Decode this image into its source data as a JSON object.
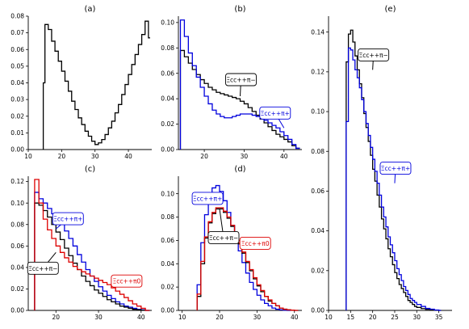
{
  "chart_data": [
    {
      "panel": "(a)",
      "type": "line",
      "title": "(a)",
      "xlim": [
        10,
        47
      ],
      "ylim": [
        0,
        0.08
      ],
      "xticks": [
        10,
        20,
        30,
        40
      ],
      "yticks": [
        0.0,
        0.01,
        0.02,
        0.03,
        0.04,
        0.05,
        0.06,
        0.07,
        0.08
      ],
      "series": [
        {
          "color": "#000000",
          "step": true,
          "x": [
            14.5,
            15,
            16,
            17,
            18,
            19,
            20,
            21,
            22,
            23,
            24,
            25,
            26,
            27,
            28,
            29,
            30,
            31,
            32,
            33,
            34,
            35,
            36,
            37,
            38,
            39,
            40,
            41,
            42,
            43,
            44,
            45,
            46
          ],
          "y": [
            0.04,
            0.075,
            0.072,
            0.065,
            0.059,
            0.053,
            0.047,
            0.041,
            0.035,
            0.029,
            0.024,
            0.019,
            0.015,
            0.011,
            0.008,
            0.005,
            0.003,
            0.004,
            0.006,
            0.009,
            0.013,
            0.017,
            0.022,
            0.027,
            0.033,
            0.039,
            0.045,
            0.051,
            0.057,
            0.063,
            0.069,
            0.077,
            0.067
          ]
        }
      ]
    },
    {
      "panel": "(b)",
      "type": "line",
      "title": "(b)",
      "xlim": [
        13.5,
        44.5
      ],
      "ylim": [
        0,
        0.105
      ],
      "xticks": [
        20,
        30,
        40
      ],
      "yticks": [
        0.0,
        0.02,
        0.04,
        0.06,
        0.08,
        0.1
      ],
      "series": [
        {
          "name": "Ξcc++π−",
          "color": "#000000",
          "step": true,
          "x": [
            14,
            15,
            16,
            17,
            18,
            19,
            20,
            21,
            22,
            23,
            24,
            25,
            26,
            27,
            28,
            29,
            30,
            31,
            32,
            33,
            34,
            35,
            36,
            37,
            38,
            39,
            40,
            41,
            42,
            43
          ],
          "y": [
            0.078,
            0.073,
            0.068,
            0.063,
            0.059,
            0.055,
            0.052,
            0.049,
            0.047,
            0.045,
            0.044,
            0.043,
            0.042,
            0.041,
            0.04,
            0.038,
            0.036,
            0.033,
            0.03,
            0.027,
            0.024,
            0.021,
            0.018,
            0.015,
            0.012,
            0.01,
            0.008,
            0.006,
            0.003,
            0.001
          ]
        },
        {
          "name": "Ξcc++π+",
          "color": "#0000dd",
          "step": true,
          "x": [
            14,
            15,
            16,
            17,
            18,
            19,
            20,
            21,
            22,
            23,
            24,
            25,
            26,
            27,
            28,
            29,
            30,
            31,
            32,
            33,
            34,
            35,
            36,
            37,
            38,
            39,
            40,
            41,
            42,
            43
          ],
          "y": [
            0.102,
            0.089,
            0.076,
            0.066,
            0.057,
            0.049,
            0.042,
            0.036,
            0.031,
            0.028,
            0.026,
            0.025,
            0.025,
            0.026,
            0.027,
            0.028,
            0.028,
            0.028,
            0.027,
            0.026,
            0.025,
            0.023,
            0.021,
            0.019,
            0.017,
            0.014,
            0.011,
            0.008,
            0.004,
            0.001
          ]
        }
      ],
      "labels": [
        {
          "text": "Ξcc++π−",
          "color": "#000000",
          "x": 29,
          "y": 0.042
        },
        {
          "text": "Ξcc++π+",
          "color": "#0000dd",
          "x": 40,
          "y": 0.017
        }
      ]
    },
    {
      "panel": "(c)",
      "type": "line",
      "title": "(c)",
      "xlim": [
        13.5,
        42.5
      ],
      "ylim": [
        0,
        0.125
      ],
      "xticks": [
        20,
        30,
        40
      ],
      "yticks": [
        0.0,
        0.02,
        0.04,
        0.06,
        0.08,
        0.1,
        0.12
      ],
      "series": [
        {
          "name": "Ξcc++π+",
          "color": "#0000dd",
          "step": true,
          "x": [
            15,
            16,
            17,
            18,
            19,
            20,
            21,
            22,
            23,
            24,
            25,
            26,
            27,
            28,
            29,
            30,
            31,
            32,
            33,
            34,
            35,
            36,
            37,
            38,
            39,
            40,
            41
          ],
          "y": [
            0.11,
            0.104,
            0.1,
            0.095,
            0.09,
            0.085,
            0.08,
            0.074,
            0.067,
            0.06,
            0.052,
            0.045,
            0.038,
            0.032,
            0.027,
            0.022,
            0.018,
            0.014,
            0.011,
            0.008,
            0.006,
            0.004,
            0.003,
            0.002,
            0.001,
            0.0005,
            0.0
          ]
        },
        {
          "name": "Ξcc++π−",
          "color": "#000000",
          "step": true,
          "x": [
            15,
            16,
            17,
            18,
            19,
            20,
            21,
            22,
            23,
            24,
            25,
            26,
            27,
            28,
            29,
            30,
            31,
            32,
            33,
            34,
            35,
            36,
            37,
            38,
            39,
            40,
            41
          ],
          "y": [
            0.1,
            0.098,
            0.093,
            0.087,
            0.08,
            0.073,
            0.066,
            0.058,
            0.051,
            0.044,
            0.038,
            0.032,
            0.027,
            0.023,
            0.019,
            0.016,
            0.013,
            0.01,
            0.008,
            0.006,
            0.004,
            0.003,
            0.002,
            0.001,
            0.0005,
            0.0002,
            0.0
          ]
        },
        {
          "name": "Ξcc++π0",
          "color": "#dd0000",
          "step": true,
          "x": [
            15,
            16,
            17,
            18,
            19,
            20,
            21,
            22,
            23,
            24,
            25,
            26,
            27,
            28,
            29,
            30,
            31,
            32,
            33,
            34,
            35,
            36,
            37,
            38,
            39,
            40,
            41
          ],
          "y": [
            0.122,
            0.1,
            0.085,
            0.075,
            0.067,
            0.06,
            0.054,
            0.049,
            0.045,
            0.041,
            0.038,
            0.036,
            0.034,
            0.032,
            0.03,
            0.028,
            0.026,
            0.024,
            0.021,
            0.018,
            0.015,
            0.012,
            0.009,
            0.006,
            0.004,
            0.002,
            0.0
          ]
        }
      ],
      "labels": [
        {
          "text": "Ξcc++π+",
          "color": "#0000dd",
          "x": 20,
          "y": 0.076
        },
        {
          "text": "Ξcc++π−",
          "color": "#000000",
          "x": 20,
          "y": 0.054
        },
        {
          "text": "Ξcc++π0",
          "color": "#dd0000",
          "x": 33,
          "y": 0.027
        }
      ]
    },
    {
      "panel": "(d)",
      "type": "line",
      "title": "(d)",
      "xlim": [
        9,
        42
      ],
      "ylim": [
        0,
        0.115
      ],
      "xticks": [
        10,
        20,
        30,
        40
      ],
      "yticks": [
        0.0,
        0.02,
        0.04,
        0.06,
        0.08,
        0.1
      ],
      "series": [
        {
          "name": "Ξcc++π+",
          "color": "#0000dd",
          "step": true,
          "x": [
            14,
            15,
            16,
            17,
            18,
            19,
            20,
            21,
            22,
            23,
            24,
            25,
            26,
            27,
            28,
            29,
            30,
            31,
            32,
            33,
            34,
            35,
            36,
            37,
            38
          ],
          "y": [
            0.022,
            0.058,
            0.082,
            0.097,
            0.105,
            0.107,
            0.102,
            0.094,
            0.084,
            0.073,
            0.062,
            0.051,
            0.041,
            0.032,
            0.024,
            0.018,
            0.013,
            0.009,
            0.006,
            0.004,
            0.002,
            0.001,
            0.0005,
            0.0002,
            0.0
          ]
        },
        {
          "name": "Ξcc++π−",
          "color": "#000000",
          "step": true,
          "x": [
            14,
            15,
            16,
            17,
            18,
            19,
            20,
            21,
            22,
            23,
            24,
            25,
            26,
            27,
            28,
            29,
            30,
            31,
            32,
            33,
            34,
            35,
            36,
            37,
            38,
            39,
            40
          ],
          "y": [
            0.012,
            0.04,
            0.062,
            0.075,
            0.083,
            0.087,
            0.087,
            0.084,
            0.079,
            0.072,
            0.065,
            0.057,
            0.049,
            0.041,
            0.034,
            0.027,
            0.021,
            0.016,
            0.012,
            0.008,
            0.006,
            0.004,
            0.002,
            0.001,
            0.0005,
            0.0002,
            0.0
          ]
        },
        {
          "name": "Ξcc++π0",
          "color": "#dd0000",
          "step": true,
          "x": [
            14,
            15,
            16,
            17,
            18,
            19,
            20,
            21,
            22,
            23,
            24,
            25,
            26,
            27,
            28,
            29,
            30,
            31,
            32,
            33,
            34,
            35,
            36,
            37,
            38,
            39,
            40
          ],
          "y": [
            0.014,
            0.042,
            0.063,
            0.076,
            0.084,
            0.088,
            0.088,
            0.085,
            0.08,
            0.073,
            0.066,
            0.058,
            0.05,
            0.042,
            0.035,
            0.028,
            0.022,
            0.017,
            0.012,
            0.009,
            0.006,
            0.004,
            0.002,
            0.001,
            0.0005,
            0.0002,
            0.0
          ]
        }
      ],
      "labels": [
        {
          "text": "Ξcc++π+",
          "color": "#0000dd",
          "x": 17,
          "y": 0.097
        },
        {
          "text": "Ξcc++π0",
          "color": "#dd0000",
          "x": 25,
          "y": 0.06
        },
        {
          "text": "Ξcc++π−",
          "color": "#000000",
          "x": 20,
          "y": 0.087
        }
      ]
    },
    {
      "panel": "(e)",
      "type": "line",
      "title": "(e)",
      "xlim": [
        10,
        38
      ],
      "ylim": [
        0,
        0.148
      ],
      "xticks": [
        10,
        15,
        20,
        25,
        30,
        35
      ],
      "yticks": [
        0.0,
        0.02,
        0.04,
        0.06,
        0.08,
        0.1,
        0.12,
        0.14
      ],
      "series": [
        {
          "name": "Ξcc++π−",
          "color": "#000000",
          "step": true,
          "x": [
            14,
            14.5,
            15,
            15.5,
            16,
            16.5,
            17,
            17.5,
            18,
            18.5,
            19,
            19.5,
            20,
            20.5,
            21,
            21.5,
            22,
            22.5,
            23,
            23.5,
            24,
            24.5,
            25,
            25.5,
            26,
            26.5,
            27,
            27.5,
            28,
            28.5,
            29,
            29.5,
            30,
            31,
            32,
            33,
            34,
            35
          ],
          "y": [
            0.125,
            0.139,
            0.141,
            0.135,
            0.128,
            0.121,
            0.114,
            0.107,
            0.099,
            0.092,
            0.085,
            0.078,
            0.071,
            0.065,
            0.058,
            0.052,
            0.046,
            0.041,
            0.036,
            0.031,
            0.027,
            0.023,
            0.019,
            0.016,
            0.013,
            0.011,
            0.009,
            0.007,
            0.005,
            0.004,
            0.003,
            0.002,
            0.0015,
            0.0009,
            0.0005,
            0.0002,
            0.0001,
            0.0
          ]
        },
        {
          "name": "Ξcc++π+",
          "color": "#0000dd",
          "step": true,
          "x": [
            14,
            14.5,
            15,
            15.5,
            16,
            16.5,
            17,
            17.5,
            18,
            18.5,
            19,
            19.5,
            20,
            20.5,
            21,
            21.5,
            22,
            22.5,
            23,
            23.5,
            24,
            24.5,
            25,
            25.5,
            26,
            26.5,
            27,
            27.5,
            28,
            28.5,
            29,
            29.5,
            30,
            31,
            32,
            33,
            34,
            35
          ],
          "y": [
            0.095,
            0.132,
            0.131,
            0.126,
            0.121,
            0.117,
            0.112,
            0.106,
            0.1,
            0.094,
            0.088,
            0.082,
            0.076,
            0.07,
            0.064,
            0.058,
            0.052,
            0.047,
            0.042,
            0.037,
            0.033,
            0.029,
            0.025,
            0.021,
            0.018,
            0.015,
            0.012,
            0.01,
            0.008,
            0.006,
            0.005,
            0.004,
            0.003,
            0.002,
            0.001,
            0.0006,
            0.0002,
            0.0
          ]
        }
      ],
      "labels": [
        {
          "text": "Ξcc++π−",
          "color": "#000000",
          "x": 20,
          "y": 0.121
        },
        {
          "text": "Ξcc++π+",
          "color": "#0000dd",
          "x": 25,
          "y": 0.064
        }
      ]
    }
  ]
}
